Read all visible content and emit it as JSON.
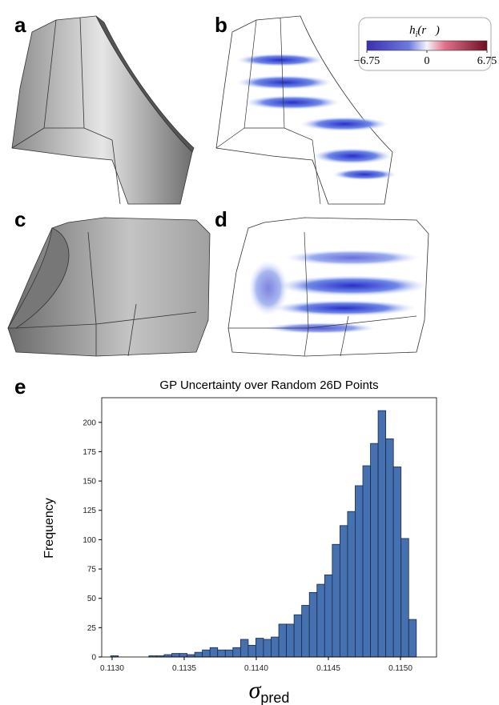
{
  "panel_labels": [
    "a",
    "b",
    "c",
    "d",
    "e"
  ],
  "colorbar": {
    "title_symbol": "h",
    "title_subscript": "i",
    "title_argument": "(r⃗)",
    "lim": [
      -6.75,
      6.75
    ],
    "ticks": [
      {
        "value": -6.75,
        "label": "−6.75"
      },
      0,
      6.75
    ]
  },
  "chart_data": {
    "type": "histogram",
    "title": "GP Uncertainty over Random 26D Points",
    "ylabel": "Frequency",
    "xlabel_symbol": "σ",
    "xlabel_subscript": "pred",
    "bins": [
      0.11299,
      0.113043,
      0.113096,
      0.113149,
      0.113202,
      0.113255,
      0.113308,
      0.113361,
      0.113414,
      0.113467,
      0.11352,
      0.113573,
      0.113626,
      0.113679,
      0.113732,
      0.113785,
      0.113838,
      0.113891,
      0.113944,
      0.113997,
      0.11405,
      0.114103,
      0.114156,
      0.114209,
      0.114262,
      0.114315,
      0.114368,
      0.114421,
      0.114474,
      0.114527,
      0.11458,
      0.114633,
      0.114686,
      0.114739,
      0.114792,
      0.114845,
      0.114898,
      0.114951,
      0.115004,
      0.115057,
      0.11511
    ],
    "values": [
      1,
      0,
      0,
      0,
      0,
      1,
      1,
      2,
      3,
      3,
      2,
      4,
      6,
      8,
      6,
      6,
      8,
      15,
      10,
      16,
      15,
      17,
      28,
      28,
      36,
      44,
      55,
      62,
      70,
      96,
      112,
      124,
      146,
      163,
      182,
      210,
      186,
      162,
      101,
      32
    ],
    "color": "#4571b0",
    "xlim": [
      0.112928,
      0.11525
    ],
    "ylim": [
      0,
      221
    ],
    "xticks": [
      {
        "value": 0.113,
        "label": "0.1130"
      },
      {
        "value": 0.1135,
        "label": "0.1135"
      },
      {
        "value": 0.114,
        "label": "0.1140"
      },
      {
        "value": 0.1145,
        "label": "0.1145"
      },
      {
        "value": 0.115,
        "label": "0.1150"
      }
    ],
    "yticks": [
      0,
      25,
      50,
      75,
      100,
      125,
      150,
      175,
      200
    ]
  }
}
